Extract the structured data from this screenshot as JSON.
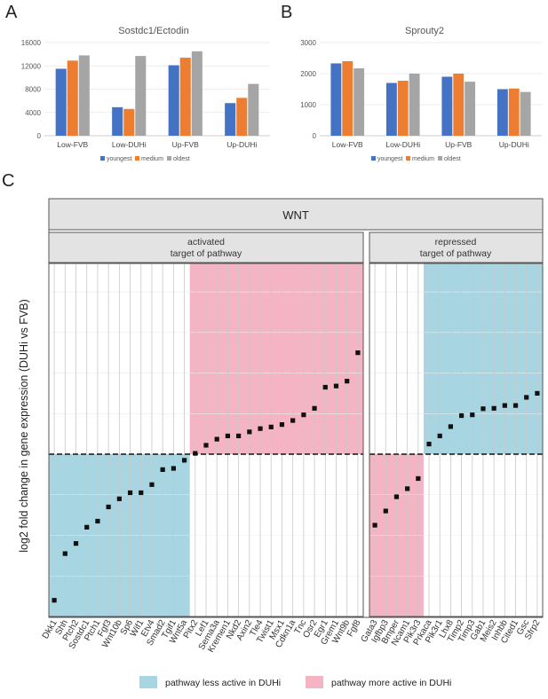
{
  "colors": {
    "youngest": "#4472c4",
    "medium": "#ed7d31",
    "oldest": "#a5a5a5",
    "less_active": "#a8d5e2",
    "more_active": "#f4b4c4",
    "header_bg": "#e3e3e3",
    "grid": "#c8c8c8"
  },
  "chart_data": [
    {
      "panel_letter": "A",
      "type": "bar",
      "title": "Sostdc1/Ectodin",
      "categories": [
        "Low-FVB",
        "Low-DUHi",
        "Up-FVB",
        "Up-DUHi"
      ],
      "series": [
        {
          "name": "youngest",
          "values": [
            11500,
            4900,
            12100,
            5600
          ]
        },
        {
          "name": "medium",
          "values": [
            12900,
            4600,
            13400,
            6500
          ]
        },
        {
          "name": "oldest",
          "values": [
            13800,
            13700,
            14500,
            8900
          ]
        }
      ],
      "yticks": [
        "0",
        "4000",
        "8000",
        "12000",
        "16000"
      ],
      "ylim": [
        0,
        16000
      ]
    },
    {
      "panel_letter": "B",
      "type": "bar",
      "title": "Sprouty2",
      "categories": [
        "Low-FVB",
        "Low-DUHi",
        "Up-FVB",
        "Up-DUHi"
      ],
      "series": [
        {
          "name": "youngest",
          "values": [
            2330,
            1700,
            1900,
            1500
          ]
        },
        {
          "name": "medium",
          "values": [
            2400,
            1770,
            2000,
            1520
          ]
        },
        {
          "name": "oldest",
          "values": [
            2170,
            2000,
            1740,
            1410
          ]
        }
      ],
      "yticks": [
        "0",
        "1000",
        "2000",
        "3000"
      ],
      "ylim": [
        0,
        3000
      ]
    },
    {
      "panel_letter": "C",
      "type": "scatter",
      "header": "WNT",
      "ylabel": "log2 fold change in gene expression (DUHi vs FVB)",
      "ylim": [
        -4,
        4.7
      ],
      "groups": [
        {
          "title_line1": "activated",
          "title_line2": "target of pathway",
          "genes": [
            "Dkk1",
            "Shh",
            "Ptch2",
            "Sostdc1",
            "Ptch1",
            "Fgf3",
            "Wnt10b",
            "Sp6",
            "Wif1",
            "Etv4",
            "Smad2",
            "Tgif1",
            "Wnt5a",
            "Pitx2",
            "Lef1",
            "Sema3a",
            "Kremen1",
            "Nkd2",
            "Axin2",
            "Tle4",
            "Twist1",
            "Msx1",
            "Cdkn1a",
            "Tnc",
            "Osr2",
            "Egr1",
            "Grem1",
            "Wnt9b",
            "Fgf8"
          ],
          "values": [
            -3.6,
            -2.45,
            -2.2,
            -1.8,
            -1.65,
            -1.3,
            -1.1,
            -0.95,
            -0.95,
            -0.75,
            -0.38,
            -0.35,
            -0.15,
            0.02,
            0.22,
            0.37,
            0.45,
            0.45,
            0.55,
            0.63,
            0.67,
            0.73,
            0.83,
            0.97,
            1.13,
            1.65,
            1.68,
            1.8,
            2.5
          ]
        },
        {
          "title_line1": "repressed",
          "title_line2": "target of pathway",
          "genes": [
            "Gata3",
            "Igfbp3",
            "Bmper",
            "Ncam1",
            "Pik3r3",
            "Prkaca",
            "Pik3r1",
            "Lhx8",
            "Timp2",
            "Timp3",
            "Gab1",
            "Meis2",
            "Inhbb",
            "Cited1",
            "Gsc",
            "Sfrp2"
          ],
          "values": [
            -1.75,
            -1.4,
            -1.05,
            -0.85,
            -0.6,
            0.25,
            0.45,
            0.68,
            0.95,
            0.97,
            1.12,
            1.13,
            1.2,
            1.2,
            1.4,
            1.5
          ]
        }
      ],
      "legend": [
        {
          "label": "pathway less active in DUHi",
          "color_key": "less_active"
        },
        {
          "label": "pathway more active in DUHi",
          "color_key": "more_active"
        }
      ]
    }
  ]
}
